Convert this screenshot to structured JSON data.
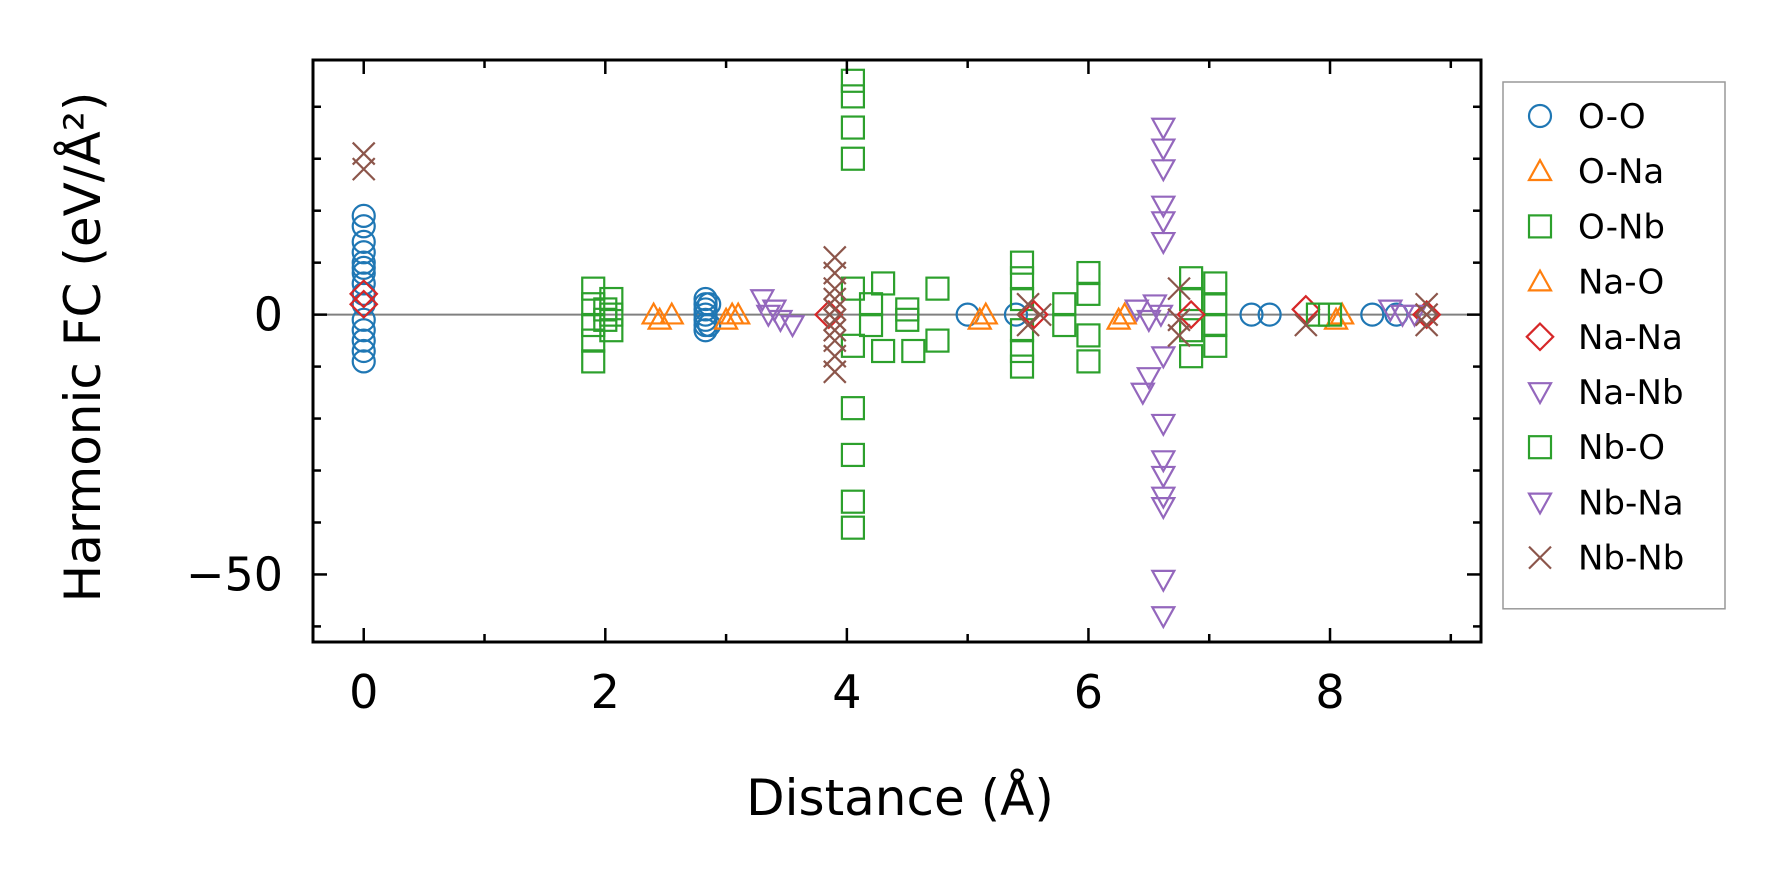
{
  "chart_data": {
    "type": "scatter",
    "title": "",
    "xlabel": "Distance (Å)",
    "ylabel": "Harmonic FC (eV/Å²)",
    "xlim": [
      -0.42,
      9.25
    ],
    "ylim": [
      -63,
      49
    ],
    "xticks": [
      0,
      2,
      4,
      6,
      8
    ],
    "xtick_labels": [
      "0",
      "2",
      "4",
      "6",
      "8"
    ],
    "yticks": [
      -50,
      0
    ],
    "ytick_labels": [
      "−50",
      "0"
    ],
    "zero_line": true,
    "grid": false,
    "legend_position": "outside-right",
    "series": [
      {
        "name": "O-O",
        "marker": "circle",
        "filled": false,
        "color": "#1f77b4",
        "points": [
          [
            0,
            19
          ],
          [
            0,
            17
          ],
          [
            0,
            14
          ],
          [
            0,
            12
          ],
          [
            0,
            10
          ],
          [
            0,
            9
          ],
          [
            0,
            8
          ],
          [
            0,
            6
          ],
          [
            0,
            4
          ],
          [
            0,
            2
          ],
          [
            0,
            -1
          ],
          [
            0,
            -3
          ],
          [
            0,
            -5
          ],
          [
            0,
            -7
          ],
          [
            0,
            -9
          ],
          [
            2.83,
            3
          ],
          [
            2.83,
            2
          ],
          [
            2.83,
            1
          ],
          [
            2.83,
            0
          ],
          [
            2.83,
            -1
          ],
          [
            2.83,
            -2
          ],
          [
            2.83,
            -3
          ],
          [
            2.86,
            2
          ],
          [
            2.86,
            -2
          ],
          [
            5.0,
            0
          ],
          [
            5.4,
            0
          ],
          [
            7.35,
            0
          ],
          [
            7.5,
            0
          ],
          [
            8.35,
            0
          ],
          [
            8.55,
            0
          ]
        ]
      },
      {
        "name": "O-Na",
        "marker": "triangle-up",
        "filled": false,
        "color": "#ff7f0e",
        "points": [
          [
            2.4,
            0
          ],
          [
            2.55,
            0
          ],
          [
            3.05,
            0
          ],
          [
            3.1,
            0
          ],
          [
            5.15,
            0
          ],
          [
            6.3,
            0
          ],
          [
            8.1,
            0
          ]
        ]
      },
      {
        "name": "O-Nb",
        "marker": "square",
        "filled": false,
        "color": "#2ca02c",
        "points": [
          [
            1.9,
            5
          ],
          [
            1.9,
            2
          ],
          [
            1.9,
            -2
          ],
          [
            1.9,
            -5
          ],
          [
            1.9,
            -9
          ],
          [
            2.05,
            3
          ],
          [
            2.05,
            0
          ],
          [
            2.05,
            -3
          ],
          [
            4.05,
            45
          ],
          [
            4.05,
            42
          ],
          [
            4.05,
            36
          ],
          [
            4.05,
            30
          ],
          [
            4.05,
            -18
          ],
          [
            4.05,
            -27
          ],
          [
            4.05,
            -36
          ],
          [
            4.05,
            -41
          ],
          [
            4.05,
            5
          ],
          [
            4.05,
            -6
          ],
          [
            4.3,
            6
          ],
          [
            4.3,
            -7
          ],
          [
            4.55,
            -7
          ],
          [
            4.75,
            5
          ],
          [
            4.75,
            -5
          ],
          [
            5.45,
            10
          ],
          [
            5.45,
            7
          ],
          [
            5.45,
            3
          ],
          [
            5.45,
            -3
          ],
          [
            5.45,
            -7
          ],
          [
            5.45,
            -10
          ],
          [
            6.0,
            8
          ],
          [
            6.0,
            4
          ],
          [
            6.0,
            -4
          ],
          [
            6.0,
            -9
          ],
          [
            6.85,
            7
          ],
          [
            6.85,
            3
          ],
          [
            6.85,
            -3
          ],
          [
            6.85,
            -8
          ],
          [
            7.05,
            6
          ],
          [
            7.05,
            2
          ],
          [
            7.05,
            -2
          ],
          [
            7.05,
            -6
          ]
        ]
      },
      {
        "name": "Na-O",
        "marker": "triangle-up",
        "filled": false,
        "color": "#ff7f0e",
        "points": [
          [
            2.45,
            -1
          ],
          [
            3.0,
            -1
          ],
          [
            5.1,
            -1
          ],
          [
            6.25,
            -1
          ],
          [
            8.05,
            -1
          ]
        ]
      },
      {
        "name": "Na-Na",
        "marker": "diamond",
        "filled": false,
        "color": "#d62728",
        "points": [
          [
            0,
            4
          ],
          [
            0,
            2
          ],
          [
            3.85,
            0
          ],
          [
            5.55,
            0
          ],
          [
            6.85,
            0
          ],
          [
            7.8,
            1
          ],
          [
            8.8,
            0
          ]
        ]
      },
      {
        "name": "Na-Nb",
        "marker": "triangle-down",
        "filled": false,
        "color": "#9467bd",
        "points": [
          [
            3.3,
            3
          ],
          [
            3.4,
            1
          ],
          [
            3.45,
            -1
          ],
          [
            3.55,
            -2
          ],
          [
            6.45,
            -15
          ],
          [
            6.5,
            -12
          ],
          [
            6.55,
            2
          ],
          [
            6.6,
            0
          ],
          [
            6.62,
            36
          ],
          [
            6.62,
            32
          ],
          [
            6.62,
            28
          ],
          [
            6.62,
            21
          ],
          [
            6.62,
            18
          ],
          [
            6.62,
            14
          ],
          [
            6.62,
            -8
          ],
          [
            6.62,
            -21
          ],
          [
            6.62,
            -28
          ],
          [
            6.62,
            -31
          ],
          [
            6.62,
            -35
          ],
          [
            6.62,
            -37
          ],
          [
            6.62,
            -51
          ],
          [
            6.62,
            -58
          ],
          [
            8.5,
            1
          ],
          [
            8.7,
            0
          ]
        ]
      },
      {
        "name": "Nb-O",
        "marker": "square",
        "filled": false,
        "color": "#2ca02c",
        "points": [
          [
            2.0,
            1
          ],
          [
            2.0,
            -1
          ],
          [
            4.2,
            2
          ],
          [
            4.2,
            -2
          ],
          [
            4.5,
            1
          ],
          [
            4.5,
            -1
          ],
          [
            5.8,
            2
          ],
          [
            5.8,
            -2
          ],
          [
            7.9,
            0
          ],
          [
            8.0,
            0
          ]
        ]
      },
      {
        "name": "Nb-Na",
        "marker": "triangle-down",
        "filled": false,
        "color": "#9467bd",
        "points": [
          [
            3.35,
            0
          ],
          [
            6.4,
            1
          ],
          [
            6.5,
            -1
          ],
          [
            8.6,
            0
          ]
        ]
      },
      {
        "name": "Nb-Nb",
        "marker": "x",
        "filled": false,
        "color": "#8c564b",
        "points": [
          [
            0,
            31
          ],
          [
            0,
            28
          ],
          [
            3.9,
            11
          ],
          [
            3.9,
            8
          ],
          [
            3.9,
            5
          ],
          [
            3.9,
            3
          ],
          [
            3.9,
            1
          ],
          [
            3.9,
            -1
          ],
          [
            3.9,
            -3
          ],
          [
            3.9,
            -5
          ],
          [
            3.9,
            -8
          ],
          [
            3.9,
            -11
          ],
          [
            5.5,
            2
          ],
          [
            5.5,
            -2
          ],
          [
            5.6,
            0
          ],
          [
            6.75,
            5
          ],
          [
            6.75,
            -1
          ],
          [
            6.75,
            -4
          ],
          [
            7.8,
            -2
          ],
          [
            8.8,
            2
          ],
          [
            8.8,
            0
          ],
          [
            8.8,
            -2
          ]
        ]
      }
    ]
  }
}
